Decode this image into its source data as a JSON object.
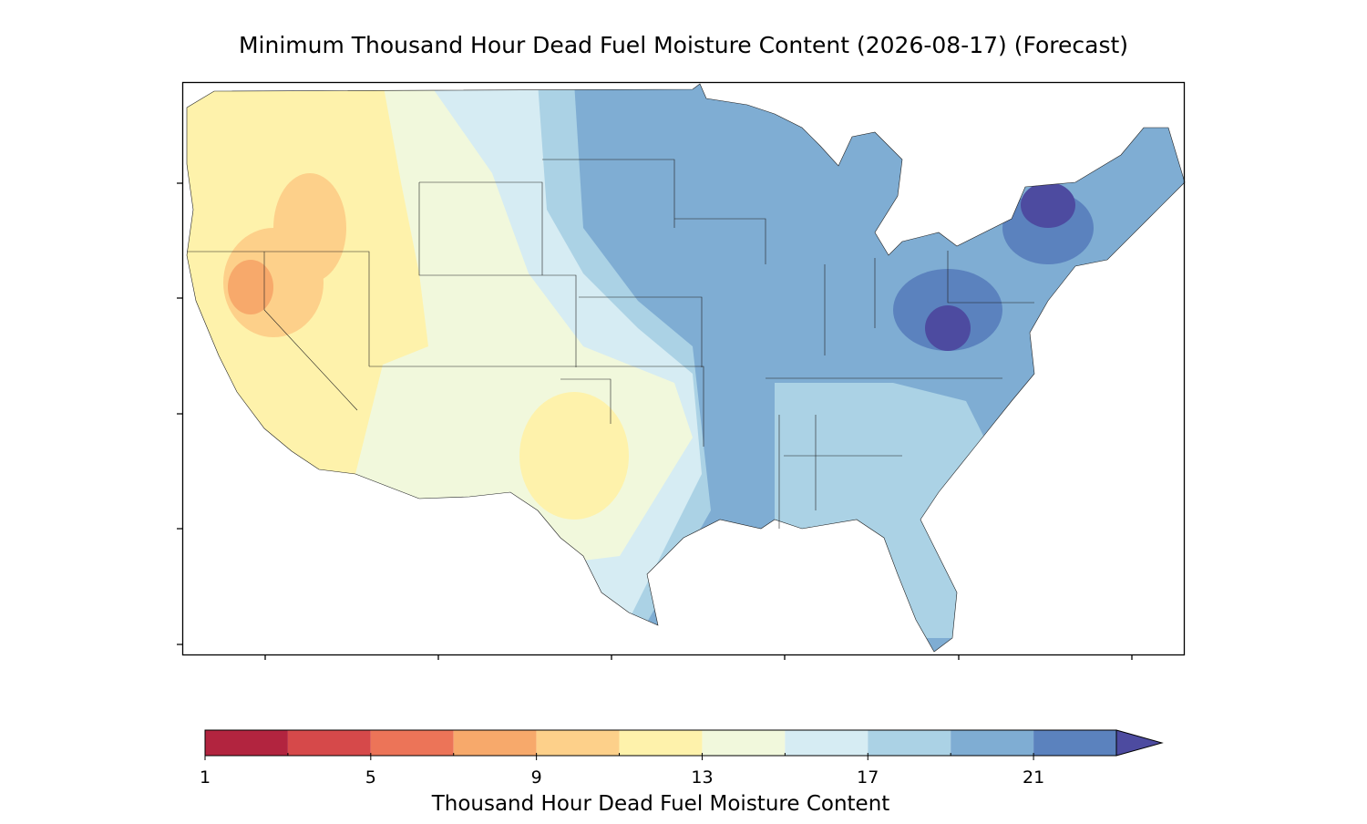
{
  "chart_data": {
    "type": "colorbar",
    "title": "Minimum Thousand Hour Dead Fuel Moisture Content (2026-08-17) (Forecast)",
    "colorbar_label": "Thousand Hour Dead Fuel Moisture Content",
    "boundaries": [
      1,
      3,
      5,
      7,
      9,
      11,
      13,
      15,
      17,
      19,
      21,
      23
    ],
    "colors": [
      "#b2243f",
      "#d6494a",
      "#ec7458",
      "#f7a96b",
      "#fdd08a",
      "#fef2ab",
      "#f1f8dc",
      "#d6ecf3",
      "#abd2e5",
      "#7fadd3",
      "#5b82be"
    ],
    "extend_color": "#4d4ba0",
    "xlim": [
      1,
      23
    ],
    "xticks": [
      1,
      5,
      9,
      13,
      17,
      21
    ]
  }
}
